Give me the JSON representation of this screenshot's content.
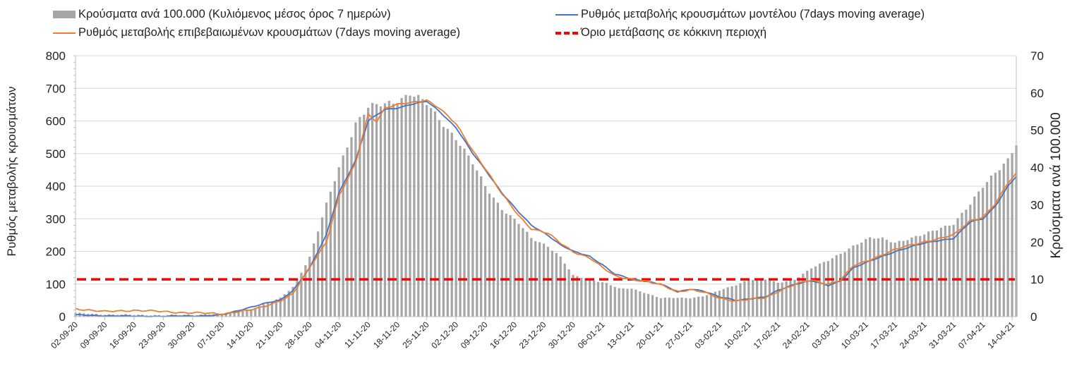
{
  "chart_data": {
    "type": "bar",
    "title": "",
    "xlabel": "",
    "ylabel_left": "Ρυθμός μεταβολής κρουσμάτων",
    "ylabel_right": "Κρούσματα ανά 100.000",
    "ylim_left": [
      0,
      800
    ],
    "ylim_right": [
      0,
      70
    ],
    "yticks_left": [
      "0",
      "100",
      "200",
      "300",
      "400",
      "500",
      "600",
      "700",
      "800"
    ],
    "yticks_right": [
      "0",
      "10",
      "20",
      "30",
      "40",
      "50",
      "60",
      "70"
    ],
    "grid": true,
    "legend_position": "top",
    "start_date": "2020-09-02",
    "num_days": 226,
    "x_tick_labels": [
      "02-09-20",
      "09-09-20",
      "16-09-20",
      "23-09-20",
      "30-09-20",
      "07-10-20",
      "14-10-20",
      "21-10-20",
      "28-10-20",
      "04-11-20",
      "11-11-20",
      "18-11-20",
      "25-11-20",
      "02-12-20",
      "09-12-20",
      "16-12-20",
      "23-12-20",
      "30-12-20",
      "06-01-21",
      "13-01-21",
      "20-01-21",
      "27-01-21",
      "03-02-21",
      "10-02-21",
      "17-02-21",
      "24-02-21",
      "03-03-21",
      "10-03-21",
      "17-03-21",
      "24-03-21",
      "31-03-21",
      "07-04-21",
      "14-04-21"
    ],
    "series": [
      {
        "name": "Κρούσματα ανά 100.000 (Κυλιόμενος μέσος όρος 7 ημερών)",
        "type": "bar",
        "axis": "right",
        "color": "#a6a6a6",
        "anchors": [
          [
            0,
            1
          ],
          [
            7,
            0.6
          ],
          [
            14,
            0.5
          ],
          [
            21,
            0.4
          ],
          [
            28,
            0.5
          ],
          [
            35,
            0.8
          ],
          [
            42,
            2
          ],
          [
            49,
            5
          ],
          [
            52,
            8
          ],
          [
            56,
            16
          ],
          [
            60,
            30
          ],
          [
            63,
            40
          ],
          [
            67,
            52
          ],
          [
            70,
            56
          ],
          [
            74,
            57
          ],
          [
            77,
            58
          ],
          [
            80,
            60
          ],
          [
            84,
            57
          ],
          [
            87,
            53
          ],
          [
            91,
            48
          ],
          [
            95,
            41
          ],
          [
            98,
            35
          ],
          [
            102,
            29
          ],
          [
            106,
            25
          ],
          [
            109,
            21
          ],
          [
            113,
            19
          ],
          [
            116,
            16
          ],
          [
            119,
            11
          ],
          [
            123,
            10
          ],
          [
            127,
            9
          ],
          [
            130,
            7.5
          ],
          [
            133,
            7.5
          ],
          [
            136,
            6.5
          ],
          [
            140,
            5
          ],
          [
            144,
            5
          ],
          [
            147,
            5
          ],
          [
            150,
            5.5
          ],
          [
            154,
            7
          ],
          [
            158,
            8.5
          ],
          [
            161,
            10
          ],
          [
            165,
            10
          ],
          [
            168,
            9
          ],
          [
            172,
            10
          ],
          [
            176,
            13
          ],
          [
            180,
            15
          ],
          [
            183,
            17
          ],
          [
            186,
            19
          ],
          [
            190,
            21
          ],
          [
            193,
            21
          ],
          [
            196,
            20
          ],
          [
            200,
            21
          ],
          [
            203,
            22
          ],
          [
            207,
            24
          ],
          [
            210,
            25
          ],
          [
            214,
            30
          ],
          [
            217,
            35
          ],
          [
            220,
            39
          ],
          [
            223,
            42
          ],
          [
            225,
            46
          ]
        ]
      },
      {
        "name": "Ρυθμός μεταβολής κρουσμάτων μοντέλου (7days moving average)",
        "type": "line",
        "axis": "left",
        "color": "#4472c4",
        "anchors": [
          [
            0,
            5
          ],
          [
            7,
            3
          ],
          [
            14,
            1
          ],
          [
            21,
            1
          ],
          [
            28,
            2
          ],
          [
            35,
            5
          ],
          [
            38,
            15
          ],
          [
            42,
            30
          ],
          [
            45,
            40
          ],
          [
            49,
            50
          ],
          [
            52,
            80
          ],
          [
            56,
            150
          ],
          [
            60,
            250
          ],
          [
            63,
            380
          ],
          [
            67,
            480
          ],
          [
            70,
            600
          ],
          [
            74,
            635
          ],
          [
            77,
            640
          ],
          [
            80,
            650
          ],
          [
            84,
            660
          ],
          [
            87,
            630
          ],
          [
            91,
            580
          ],
          [
            95,
            500
          ],
          [
            98,
            450
          ],
          [
            102,
            380
          ],
          [
            106,
            320
          ],
          [
            109,
            280
          ],
          [
            113,
            250
          ],
          [
            116,
            220
          ],
          [
            119,
            200
          ],
          [
            123,
            185
          ],
          [
            126,
            160
          ],
          [
            129,
            130
          ],
          [
            133,
            115
          ],
          [
            136,
            110
          ],
          [
            140,
            100
          ],
          [
            144,
            75
          ],
          [
            147,
            85
          ],
          [
            150,
            80
          ],
          [
            154,
            60
          ],
          [
            158,
            50
          ],
          [
            161,
            55
          ],
          [
            165,
            60
          ],
          [
            168,
            80
          ],
          [
            172,
            100
          ],
          [
            176,
            110
          ],
          [
            180,
            95
          ],
          [
            183,
            110
          ],
          [
            186,
            150
          ],
          [
            190,
            170
          ],
          [
            193,
            185
          ],
          [
            196,
            200
          ],
          [
            200,
            215
          ],
          [
            203,
            225
          ],
          [
            207,
            235
          ],
          [
            210,
            240
          ],
          [
            214,
            290
          ],
          [
            217,
            300
          ],
          [
            220,
            340
          ],
          [
            223,
            400
          ],
          [
            225,
            430
          ]
        ]
      },
      {
        "name": "Ρυθμός μεταβολής επιβεβαιωμένων κρουσμάτων (7days moving average)",
        "type": "line",
        "axis": "left",
        "color": "#ed7d31",
        "anchors": [
          [
            0,
            25
          ],
          [
            7,
            15
          ],
          [
            14,
            20
          ],
          [
            21,
            15
          ],
          [
            28,
            12
          ],
          [
            35,
            8
          ],
          [
            38,
            15
          ],
          [
            42,
            20
          ],
          [
            45,
            30
          ],
          [
            49,
            50
          ],
          [
            52,
            70
          ],
          [
            56,
            150
          ],
          [
            60,
            230
          ],
          [
            63,
            370
          ],
          [
            67,
            470
          ],
          [
            70,
            620
          ],
          [
            72,
            600
          ],
          [
            74,
            640
          ],
          [
            77,
            650
          ],
          [
            80,
            655
          ],
          [
            84,
            665
          ],
          [
            87,
            640
          ],
          [
            91,
            590
          ],
          [
            95,
            510
          ],
          [
            98,
            455
          ],
          [
            102,
            375
          ],
          [
            106,
            310
          ],
          [
            109,
            270
          ],
          [
            113,
            255
          ],
          [
            116,
            225
          ],
          [
            119,
            200
          ],
          [
            123,
            180
          ],
          [
            126,
            150
          ],
          [
            129,
            125
          ],
          [
            133,
            115
          ],
          [
            136,
            108
          ],
          [
            140,
            98
          ],
          [
            144,
            78
          ],
          [
            147,
            82
          ],
          [
            150,
            75
          ],
          [
            154,
            58
          ],
          [
            158,
            48
          ],
          [
            161,
            52
          ],
          [
            165,
            58
          ],
          [
            168,
            78
          ],
          [
            172,
            98
          ],
          [
            176,
            112
          ],
          [
            180,
            100
          ],
          [
            183,
            112
          ],
          [
            186,
            155
          ],
          [
            190,
            175
          ],
          [
            193,
            190
          ],
          [
            196,
            205
          ],
          [
            200,
            220
          ],
          [
            203,
            230
          ],
          [
            207,
            240
          ],
          [
            210,
            250
          ],
          [
            214,
            295
          ],
          [
            217,
            305
          ],
          [
            220,
            345
          ],
          [
            223,
            410
          ],
          [
            225,
            440
          ]
        ]
      },
      {
        "name": "Όριο μετάβασης σε κόκκινη περιοχή",
        "type": "line",
        "axis": "right",
        "style": "dashed",
        "color": "#ff0000",
        "value": 10
      }
    ]
  }
}
